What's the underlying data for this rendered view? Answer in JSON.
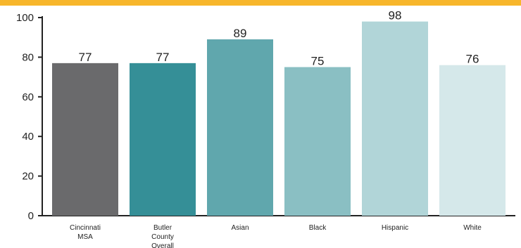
{
  "colors": {
    "accent_band": "#f7b62b",
    "axis": "#222222"
  },
  "chart_data": {
    "type": "bar",
    "title": "",
    "xlabel": "",
    "ylabel": "",
    "ylim": [
      0,
      100
    ],
    "yticks": [
      0,
      20,
      40,
      60,
      80,
      100
    ],
    "grid": false,
    "legend": "none",
    "categories": [
      [
        "Cincinnati",
        "MSA"
      ],
      [
        "Butler",
        "County",
        "Overall"
      ],
      [
        "Asian"
      ],
      [
        "Black"
      ],
      [
        "Hispanic"
      ],
      [
        "White"
      ]
    ],
    "values": [
      77,
      77,
      89,
      75,
      98,
      76
    ],
    "data_labels": [
      "77",
      "77",
      "89",
      "75",
      "98",
      "76"
    ],
    "bar_colors": [
      "#6a6a6c",
      "#358f97",
      "#60a7ad",
      "#8abfc3",
      "#b1d5d8",
      "#d5e8ea"
    ]
  }
}
